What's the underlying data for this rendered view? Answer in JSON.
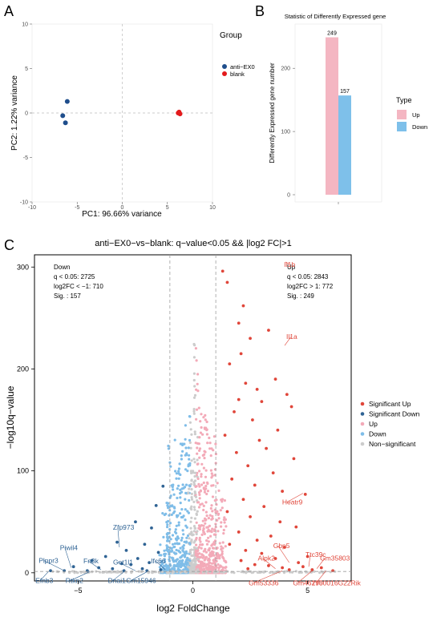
{
  "panel_labels": [
    "A",
    "B",
    "C"
  ],
  "chart_data": [
    {
      "type": "scatter",
      "panel": "A",
      "title": "",
      "xlabel": "PC1: 96.66% variance",
      "ylabel": "PC2: 1.22% variance",
      "xlim": [
        -10,
        10
      ],
      "ylim": [
        -10,
        10
      ],
      "xticks": [
        -10,
        -5,
        0,
        5,
        10
      ],
      "yticks": [
        -10,
        -5,
        0,
        5,
        10
      ],
      "legend_title": "Group",
      "legend_position": "right",
      "series": [
        {
          "name": "anti−EX0",
          "color": "#1f4e8c",
          "points": [
            [
              -6.1,
              1.3
            ],
            [
              -6.6,
              -0.3
            ],
            [
              -6.3,
              -1.1
            ]
          ]
        },
        {
          "name": "blank",
          "color": "#e31a1c",
          "points": [
            [
              6.3,
              0.1
            ],
            [
              6.4,
              -0.1
            ],
            [
              6.2,
              0.0
            ]
          ]
        }
      ]
    },
    {
      "type": "bar",
      "panel": "B",
      "title": "Statistic of Differently Expressed gene",
      "xlabel": "",
      "ylabel": "Differently Expressed gene number",
      "ylim": [
        0,
        270
      ],
      "yticks": [
        0,
        100,
        200
      ],
      "legend_title": "Type",
      "legend_position": "right",
      "series": [
        {
          "name": "Up",
          "value": 249,
          "label": "249",
          "color": "#f4b6c2"
        },
        {
          "name": "Down",
          "value": 157,
          "label": "157",
          "color": "#7ec0ea"
        }
      ]
    },
    {
      "type": "scatter",
      "panel": "C",
      "title": "anti−EX0−vs−blank: q−value<0.05 && |log2 FC|>1",
      "xlabel": "log2 FoldChange",
      "ylabel": "−log10q−value",
      "xlim": [
        -6.9,
        6.9
      ],
      "ylim": [
        -8,
        312
      ],
      "xticks": [
        -5,
        0,
        5
      ],
      "yticks": [
        0,
        100,
        200,
        300
      ],
      "threshold_x": [
        -1,
        1
      ],
      "threshold_y": 1.3,
      "legend_position": "right",
      "legend": [
        {
          "name": "Significant Up",
          "color": "#e0463a"
        },
        {
          "name": "Significant Down",
          "color": "#2f6394"
        },
        {
          "name": "Up",
          "color": "#f3aab8"
        },
        {
          "name": "Down",
          "color": "#7fbde8"
        },
        {
          "name": "Non−significant",
          "color": "#cccccc"
        }
      ],
      "annotations_left": {
        "title": "Down",
        "line1": "q < 0.05: 2725",
        "line2": "log2FC < −1: 710",
        "line3": "Sig. : 157"
      },
      "annotations_right": {
        "title": "Up",
        "line1": "q < 0.05: 2843",
        "line2": "log2FC > 1: 772",
        "line3": "Sig. : 249"
      },
      "labeled_genes": [
        {
          "name": "Il1b",
          "x": 4.05,
          "y": 305
        },
        {
          "name": "Il1a",
          "x": 4.0,
          "y": 223
        },
        {
          "name": "Heatr9",
          "x": 4.8,
          "y": 78
        },
        {
          "name": "Gbp5",
          "x": 4.2,
          "y": 10
        },
        {
          "name": "Alpk2",
          "x": 3.6,
          "y": 4
        },
        {
          "name": "Ttc39c",
          "x": 5.05,
          "y": 6
        },
        {
          "name": "Gm35803",
          "x": 5.4,
          "y": 4
        },
        {
          "name": "Gm53336",
          "x": 3.9,
          "y": 2
        },
        {
          "name": "Gm46295",
          "x": 5.2,
          "y": 2
        },
        {
          "name": "1700016G22Rik",
          "x": 5.8,
          "y": 2
        },
        {
          "name": "Piwil4",
          "x": -5.3,
          "y": 5
        },
        {
          "name": "Zfp973",
          "x": -3.2,
          "y": 25
        },
        {
          "name": "Fn3k",
          "x": -4.0,
          "y": 3
        },
        {
          "name": "Plppr3",
          "x": -5.6,
          "y": 2
        },
        {
          "name": "Got1l1",
          "x": -2.5,
          "y": 2
        },
        {
          "name": "Ifc66",
          "x": -1.2,
          "y": 3
        },
        {
          "name": "Efnb3",
          "x": -6.3,
          "y": 1
        },
        {
          "name": "Rtkn2",
          "x": -4.5,
          "y": 1
        },
        {
          "name": "Dnai1",
          "x": -3.0,
          "y": 1
        },
        {
          "name": "Gm15946",
          "x": -2.0,
          "y": 1
        }
      ],
      "highlight_points": {
        "sig_up": [
          [
            1.3,
            296
          ],
          [
            1.5,
            285
          ],
          [
            2.2,
            262
          ],
          [
            2.0,
            245
          ],
          [
            3.3,
            238
          ],
          [
            2.5,
            230
          ],
          [
            2.1,
            215
          ],
          [
            1.6,
            205
          ],
          [
            3.6,
            190
          ],
          [
            2.3,
            186
          ],
          [
            2.8,
            180
          ],
          [
            4.1,
            175
          ],
          [
            2.0,
            170
          ],
          [
            3.0,
            168
          ],
          [
            4.3,
            163
          ],
          [
            1.8,
            158
          ],
          [
            2.6,
            150
          ],
          [
            3.7,
            140
          ],
          [
            1.4,
            135
          ],
          [
            2.9,
            130
          ],
          [
            3.2,
            122
          ],
          [
            1.9,
            118
          ],
          [
            4.4,
            112
          ],
          [
            2.4,
            105
          ],
          [
            3.5,
            98
          ],
          [
            1.7,
            92
          ],
          [
            2.7,
            86
          ],
          [
            3.9,
            80
          ],
          [
            4.9,
            77
          ],
          [
            2.2,
            72
          ],
          [
            3.1,
            65
          ],
          [
            1.5,
            60
          ],
          [
            2.5,
            55
          ],
          [
            3.8,
            50
          ],
          [
            4.5,
            45
          ],
          [
            2.0,
            40
          ],
          [
            3.4,
            36
          ],
          [
            2.8,
            32
          ],
          [
            1.6,
            28
          ],
          [
            4.0,
            25
          ],
          [
            2.3,
            22
          ],
          [
            3.0,
            19
          ],
          [
            5.0,
            16
          ],
          [
            3.6,
            14
          ],
          [
            2.1,
            12
          ],
          [
            4.6,
            10
          ],
          [
            2.7,
            8
          ],
          [
            3.3,
            7
          ],
          [
            4.8,
            6
          ],
          [
            5.6,
            5
          ],
          [
            3.9,
            5
          ],
          [
            2.4,
            4
          ],
          [
            4.2,
            3
          ],
          [
            5.2,
            3
          ],
          [
            6.1,
            2
          ]
        ],
        "sig_down": [
          [
            -1.3,
            85
          ],
          [
            -1.6,
            66
          ],
          [
            -2.5,
            50
          ],
          [
            -1.8,
            44
          ],
          [
            -3.3,
            30
          ],
          [
            -2.1,
            28
          ],
          [
            -2.9,
            22
          ],
          [
            -1.5,
            20
          ],
          [
            -3.8,
            16
          ],
          [
            -2.4,
            14
          ],
          [
            -4.4,
            12
          ],
          [
            -1.9,
            10
          ],
          [
            -3.1,
            9
          ],
          [
            -2.7,
            8
          ],
          [
            -5.2,
            6
          ],
          [
            -4.1,
            5
          ],
          [
            -3.5,
            4
          ],
          [
            -2.2,
            4
          ],
          [
            -6.2,
            2
          ],
          [
            -5.6,
            2
          ],
          [
            -4.6,
            2
          ],
          [
            -3.0,
            2
          ],
          [
            -2.0,
            2
          ],
          [
            -1.4,
            3
          ]
        ]
      }
    }
  ]
}
